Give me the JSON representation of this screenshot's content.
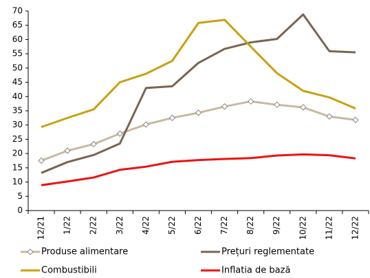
{
  "chart_data": {
    "type": "line",
    "categories": [
      "12/21",
      "1/22",
      "2/22",
      "3/22",
      "4/22",
      "5/22",
      "6/22",
      "7/22",
      "8/22",
      "9/22",
      "10/22",
      "11/22",
      "12/22"
    ],
    "series": [
      {
        "name": "Produse alimentare",
        "color": "#c8b8a0",
        "marker": "diamond",
        "values": [
          17.5,
          21,
          23.3,
          27,
          30.2,
          32.5,
          34.3,
          36.5,
          38.3,
          37.1,
          36.2,
          33,
          31.8
        ]
      },
      {
        "name": "Prețuri reglementate",
        "color": "#7a6450",
        "values": [
          13.2,
          17,
          19.5,
          23.5,
          43,
          43.6,
          51.8,
          56.7,
          59,
          60.2,
          68.8,
          55.9,
          55.5
        ]
      },
      {
        "name": "Combustibili",
        "color": "#c9a010",
        "values": [
          29.3,
          32.5,
          35.5,
          45,
          48,
          52.5,
          65.8,
          66.9,
          57.5,
          48.2,
          42,
          39.7,
          35.8
        ]
      },
      {
        "name": "Inflatia de bază",
        "color": "#ee1111",
        "values": [
          8.9,
          10.2,
          11.6,
          14.3,
          15.4,
          17.1,
          17.7,
          18.1,
          18.4,
          19.3,
          19.7,
          19.4,
          18.3
        ]
      }
    ],
    "ylim": [
      0,
      70
    ],
    "yticks": [
      0,
      5,
      10,
      15,
      20,
      25,
      30,
      35,
      40,
      45,
      50,
      55,
      60,
      65,
      70
    ],
    "grid": false,
    "legend": "bottom"
  }
}
